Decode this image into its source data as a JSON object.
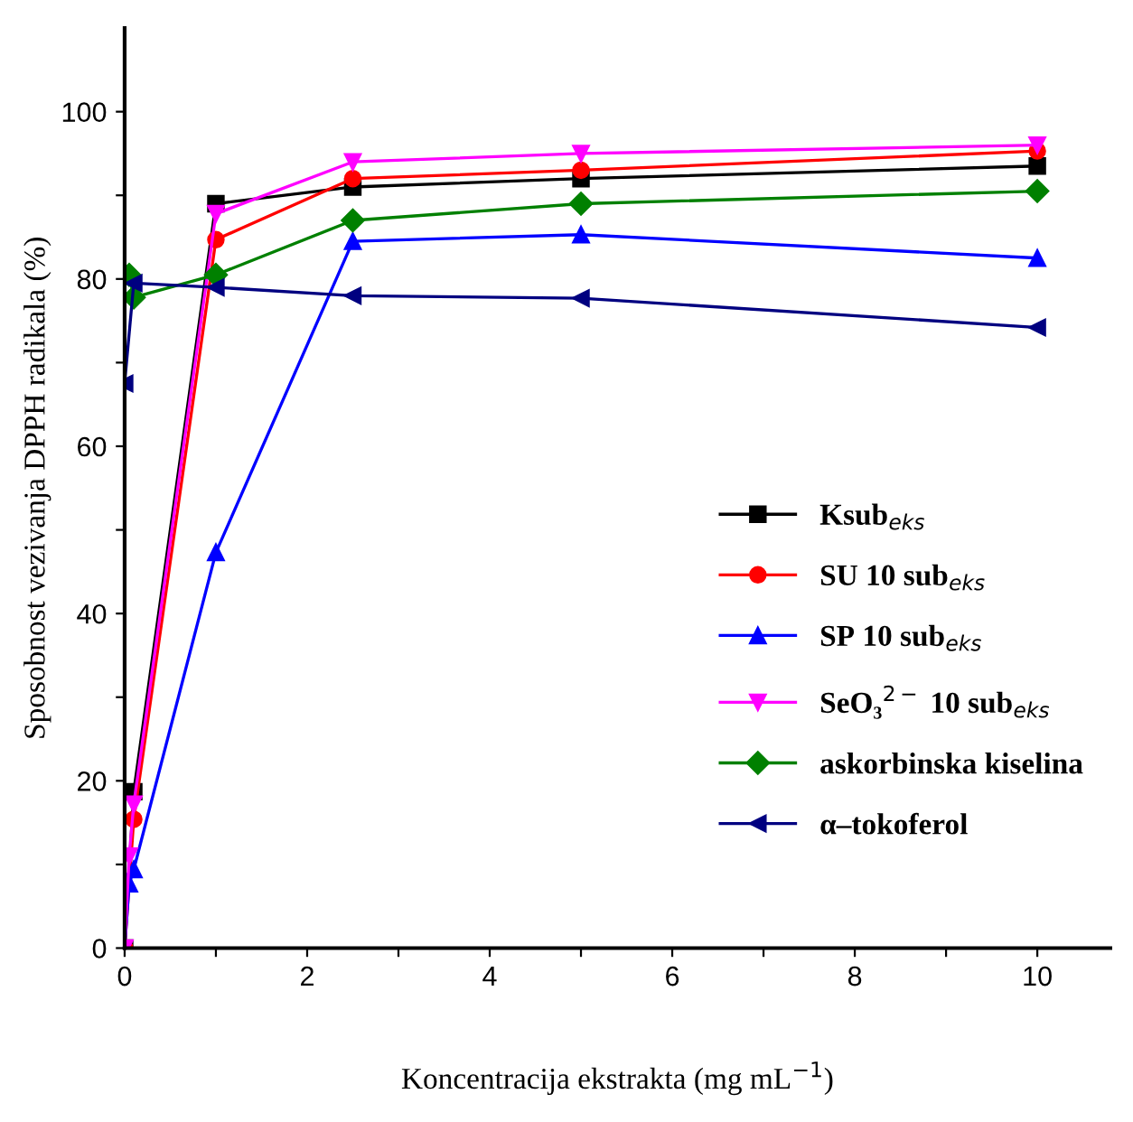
{
  "chart_data": {
    "type": "line",
    "xlabel": "Koncentracija ekstrakta (mg mL$^{−1}$)",
    "ylabel": "Sposobnost vezivanja DPPH radikala (%)",
    "xlim": [
      0,
      10.8
    ],
    "ylim": [
      0,
      110
    ],
    "xticks": [
      0,
      {
        "value": 1,
        "label": null
      },
      2,
      {
        "value": 3,
        "label": null
      },
      4,
      {
        "value": 5,
        "label": null
      },
      6,
      {
        "value": 7,
        "label": null
      },
      8,
      {
        "value": 9,
        "label": null
      },
      10
    ],
    "yticks": [
      0,
      {
        "value": 10,
        "label": null
      },
      20,
      {
        "value": 30,
        "label": null
      },
      40,
      {
        "value": 50,
        "label": null
      },
      60,
      {
        "value": 70,
        "label": null
      },
      80,
      {
        "value": 90,
        "label": null
      },
      100
    ],
    "grid": false,
    "legend": "right",
    "line_style": "solid",
    "series": [
      {
        "name": "Ksub$_{eks}$",
        "color": "#000000",
        "marker": "square",
        "x": [
          0,
          0.1,
          1,
          2.5,
          5,
          10
        ],
        "values": [
          0,
          18.7,
          89,
          91,
          92,
          93.5
        ]
      },
      {
        "name": "SU 10 sub$_{eks}$",
        "color": "#ff0000",
        "marker": "circle",
        "x": [
          0,
          0.1,
          1,
          2.5,
          5,
          10
        ],
        "values": [
          0,
          15.4,
          84.7,
          92,
          93,
          95.3
        ]
      },
      {
        "name": "SP 10 sub$_{eks}$",
        "color": "#0000ff",
        "marker": "triangle",
        "x": [
          0,
          0.05,
          0.1,
          1,
          2.5,
          5,
          10
        ],
        "values": [
          0,
          7.7,
          9.4,
          47.3,
          84.5,
          85.3,
          82.5
        ]
      },
      {
        "name": "SeO₃$^{2−}$ 10 sub$_{eks}$",
        "color": "#ff00ff",
        "marker": "triangle_down",
        "x": [
          0,
          0.05,
          0.1,
          1,
          2.5,
          5,
          10
        ],
        "values": [
          0,
          11,
          17.2,
          87.8,
          94,
          95,
          96
        ]
      },
      {
        "name": "askorbinska kiselina",
        "color": "#008000",
        "marker": "diamond",
        "x": [
          0.05,
          0.1,
          1,
          2.5,
          5,
          10
        ],
        "values": [
          80.5,
          77.8,
          80.5,
          87,
          89,
          90.5
        ]
      },
      {
        "name": "α–tokoferol",
        "color": "#000080",
        "marker": "triangle_left",
        "x": [
          0,
          0.1,
          1,
          2.5,
          5,
          10
        ],
        "values": [
          67.5,
          79.5,
          79,
          78,
          77.7,
          74.2
        ]
      }
    ]
  }
}
